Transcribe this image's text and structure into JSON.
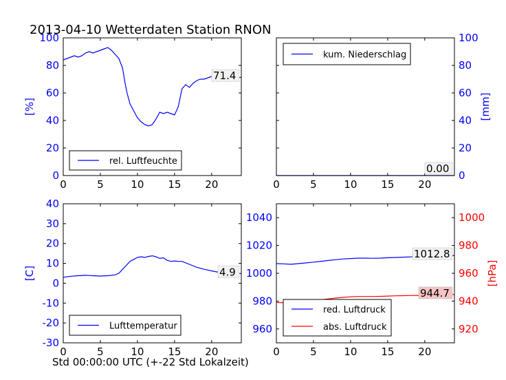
{
  "title": "2013-04-10 Wetterdaten Station RNON",
  "xlabel": "Std 00:00:00 UTC (+-22 Std Lokalzeit)",
  "colors": {
    "blue": "#0000ff",
    "red": "#ff0000",
    "black": "#000000"
  },
  "chart_data": [
    {
      "type": "line",
      "id": "humidity",
      "xlim": [
        0,
        24
      ],
      "ylim": [
        0,
        100
      ],
      "ylabel": "[%]",
      "xticks": [
        0,
        5,
        10,
        15,
        20
      ],
      "yticks": [
        0,
        20,
        40,
        60,
        80,
        100
      ],
      "legend_placement": "lower-left",
      "last_value_label": "71.4",
      "series": [
        {
          "name": "rel. Luftfeuchte",
          "color": "#0000ff",
          "x": [
            0,
            0.5,
            1,
            1.5,
            2,
            2.5,
            3,
            3.5,
            4,
            4.5,
            5,
            5.5,
            6,
            6.5,
            7,
            7.5,
            8,
            8.3,
            8.6,
            9,
            9.5,
            10,
            10.5,
            11,
            11.5,
            12,
            12.5,
            13,
            13.5,
            14,
            14.5,
            15,
            15.5,
            16,
            16.5,
            17,
            17.5,
            18,
            18.5,
            19,
            19.5,
            20,
            20.5,
            21,
            21.5,
            22,
            22.5,
            23,
            23.5,
            24
          ],
          "y": [
            84,
            85,
            86,
            87,
            86,
            87,
            89,
            90,
            89,
            90,
            91,
            92,
            93,
            91,
            88,
            85,
            78,
            68,
            60,
            52,
            47,
            42,
            39,
            37,
            36,
            37,
            41,
            46,
            45,
            46,
            45,
            44,
            50,
            63,
            66,
            64,
            67,
            69,
            70,
            70,
            71,
            72,
            73,
            73,
            72,
            73,
            72,
            71,
            71,
            71.4
          ]
        }
      ]
    },
    {
      "type": "line",
      "id": "precipitation",
      "xlim": [
        0,
        24
      ],
      "ylim": [
        0,
        100
      ],
      "ylabel": "[mm]",
      "xticks": [
        0,
        5,
        10,
        15,
        20
      ],
      "yticks": [
        0,
        20,
        40,
        60,
        80,
        100
      ],
      "legend_placement": "upper-left",
      "last_value_label": "0.00",
      "series": [
        {
          "name": "kum. Niederschlag",
          "color": "#0000ff",
          "x": [
            0,
            24
          ],
          "y": [
            0,
            0
          ]
        }
      ]
    },
    {
      "type": "line",
      "id": "temperature",
      "xlim": [
        0,
        24
      ],
      "ylim": [
        -30,
        40
      ],
      "ylabel": "[C]",
      "xticks": [
        0,
        5,
        10,
        15,
        20
      ],
      "yticks": [
        -30,
        -20,
        -10,
        0,
        10,
        20,
        30,
        40
      ],
      "legend_placement": "lower-left",
      "last_value_label": "4.9",
      "series": [
        {
          "name": "Lufttemperatur",
          "color": "#0000ff",
          "x": [
            0,
            1,
            2,
            3,
            4,
            5,
            6,
            7,
            7.5,
            8,
            8.5,
            9,
            9.5,
            10,
            10.5,
            11,
            11.5,
            12,
            12.5,
            13,
            13.5,
            14,
            14.5,
            15,
            15.5,
            16,
            17,
            18,
            19,
            20,
            21,
            22,
            23,
            24
          ],
          "y": [
            3,
            3.5,
            3.8,
            4,
            3.8,
            3.6,
            3.8,
            4.2,
            5,
            7,
            9,
            11,
            12,
            13,
            13.3,
            13,
            13.5,
            13.8,
            13.3,
            12.5,
            12.8,
            11.5,
            11,
            11.2,
            11,
            11,
            9.5,
            8,
            7,
            6.2,
            5.5,
            5.2,
            5,
            4.9
          ]
        }
      ]
    },
    {
      "type": "line",
      "id": "pressure",
      "xlim": [
        0,
        24
      ],
      "ylim": [
        950,
        1050
      ],
      "ylim_right": [
        910,
        1010
      ],
      "ylabel": "",
      "ylabel_right": "[hPa]",
      "xticks": [
        0,
        5,
        10,
        15,
        20
      ],
      "yticks": [
        960,
        980,
        1000,
        1020,
        1040
      ],
      "yticks_right": [
        920,
        940,
        960,
        980,
        1000
      ],
      "legend_placement": "lower-left",
      "last_value_labels": [
        "1012.8",
        "944.7"
      ],
      "series": [
        {
          "name": "red. Luftdruck",
          "color": "#0000ff",
          "axis": "left",
          "x": [
            0,
            1,
            2,
            3,
            4,
            5,
            6,
            7,
            8,
            9,
            10,
            11,
            12,
            13,
            14,
            15,
            16,
            17,
            18,
            19,
            20,
            21,
            22,
            23,
            24
          ],
          "y": [
            1007,
            1006.8,
            1006.5,
            1007,
            1007.5,
            1008,
            1008.6,
            1009.2,
            1009.8,
            1010.3,
            1010.6,
            1010.9,
            1010.9,
            1010.8,
            1010.9,
            1011.2,
            1011.4,
            1011.6,
            1011.8,
            1012,
            1012.3,
            1012.5,
            1012.6,
            1012.7,
            1012.8
          ]
        },
        {
          "name": "abs. Luftdruck",
          "color": "#ff0000",
          "axis": "right",
          "x": [
            0,
            1,
            2,
            3,
            4,
            5,
            6,
            7,
            8,
            9,
            10,
            11,
            12,
            13,
            14,
            15,
            16,
            17,
            18,
            19,
            20,
            21,
            22,
            23,
            24
          ],
          "y": [
            939,
            938.8,
            938.6,
            939.2,
            939.8,
            940.4,
            941,
            941.6,
            942.2,
            942.7,
            943.1,
            943.3,
            943.3,
            943.3,
            943.4,
            943.6,
            943.8,
            943.9,
            944,
            944.1,
            944.3,
            944.4,
            944.5,
            944.6,
            944.7
          ]
        }
      ]
    }
  ]
}
